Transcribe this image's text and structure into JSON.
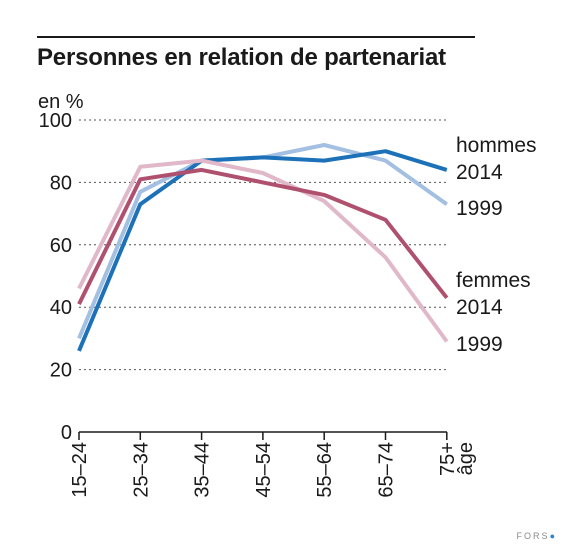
{
  "chart_data": {
    "type": "line",
    "title": "Personnes en relation de partenariat",
    "ylabel": "en %",
    "xlabel": "âge",
    "categories": [
      "15–24",
      "25–34",
      "35–44",
      "45–54",
      "55–64",
      "65–74",
      "75+"
    ],
    "ylim": [
      0,
      100
    ],
    "yticks": [
      0,
      20,
      40,
      60,
      80,
      100
    ],
    "grid": true,
    "legend_groups": [
      {
        "label": "hommes",
        "entries": [
          "2014",
          "1999"
        ]
      },
      {
        "label": "femmes",
        "entries": [
          "2014",
          "1999"
        ]
      }
    ],
    "series": [
      {
        "name": "hommes 1999",
        "color": "#a3bfe2",
        "values": [
          30,
          77,
          87,
          88,
          92,
          87,
          73
        ]
      },
      {
        "name": "hommes 2014",
        "color": "#1d71b8",
        "values": [
          26,
          73,
          87,
          88,
          87,
          90,
          84
        ]
      },
      {
        "name": "femmes 1999",
        "color": "#e1b8c9",
        "values": [
          46,
          85,
          87,
          83,
          74,
          56,
          29
        ]
      },
      {
        "name": "femmes 2014",
        "color": "#b0506f",
        "values": [
          41,
          81,
          84,
          80,
          76,
          68,
          43
        ]
      }
    ]
  },
  "footer": {
    "brand": "FORS"
  }
}
